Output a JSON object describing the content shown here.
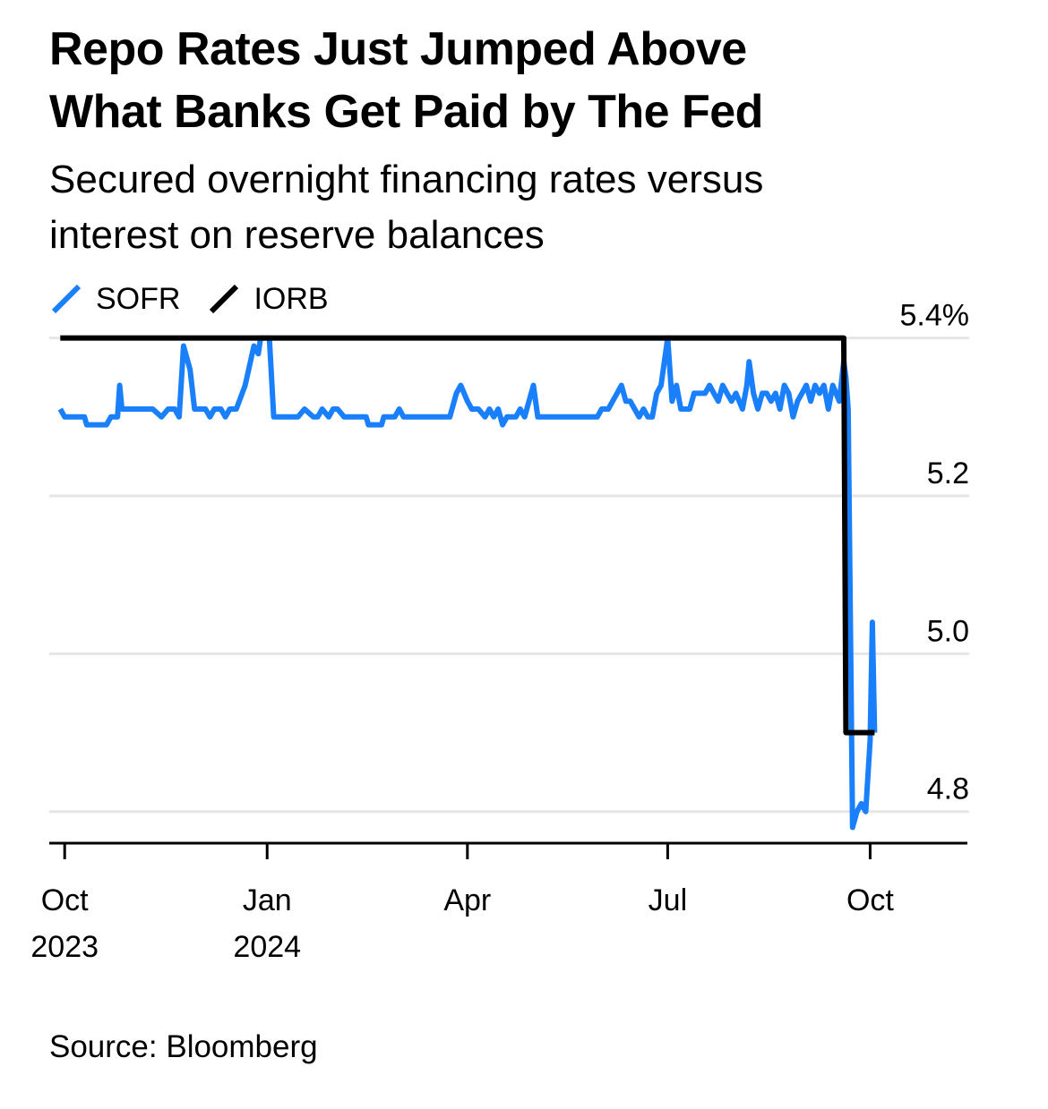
{
  "title_line1": "Repo Rates Just Jumped Above",
  "title_line2": "What Banks Get Paid by The Fed",
  "subtitle_line1": "Secured overnight financing rates versus",
  "subtitle_line2": "interest on reserve balances",
  "source": "Source: Bloomberg",
  "colors": {
    "sofr": "#1a7ffb",
    "iorb": "#000000",
    "grid": "#e6e6e6",
    "axis": "#000000"
  },
  "chart_data": {
    "type": "line",
    "title": "Repo Rates Just Jumped Above What Banks Get Paid by The Fed",
    "subtitle": "Secured overnight financing rates versus interest on reserve balances",
    "xlabel": "",
    "ylabel": "",
    "ylim": [
      4.76,
      5.42
    ],
    "xlim": [
      "2023-09-24",
      "2024-11-15"
    ],
    "y_ticks": [
      {
        "value": 5.4,
        "label": "5.4%"
      },
      {
        "value": 5.2,
        "label": "5.2"
      },
      {
        "value": 5.0,
        "label": "5.0"
      },
      {
        "value": 4.8,
        "label": "4.8"
      }
    ],
    "x_ticks": [
      {
        "date": "2023-10-01",
        "line1": "Oct",
        "line2": "2023"
      },
      {
        "date": "2024-01-01",
        "line1": "Jan",
        "line2": "2024"
      },
      {
        "date": "2024-04-01",
        "line1": "Apr",
        "line2": ""
      },
      {
        "date": "2024-07-01",
        "line1": "Jul",
        "line2": ""
      },
      {
        "date": "2024-10-01",
        "line1": "Oct",
        "line2": ""
      }
    ],
    "grid": true,
    "legend": "top-left",
    "series": [
      {
        "name": "SOFR",
        "color": "#1a7ffb",
        "points": [
          [
            "2023-09-29",
            5.31
          ],
          [
            "2023-10-01",
            5.3
          ],
          [
            "2023-10-02",
            5.3
          ],
          [
            "2023-10-10",
            5.3
          ],
          [
            "2023-10-11",
            5.29
          ],
          [
            "2023-10-20",
            5.29
          ],
          [
            "2023-10-22",
            5.3
          ],
          [
            "2023-10-25",
            5.3
          ],
          [
            "2023-10-26",
            5.34
          ],
          [
            "2023-10-27",
            5.31
          ],
          [
            "2023-10-28",
            5.31
          ],
          [
            "2023-11-05",
            5.31
          ],
          [
            "2023-11-10",
            5.31
          ],
          [
            "2023-11-14",
            5.3
          ],
          [
            "2023-11-17",
            5.31
          ],
          [
            "2023-11-20",
            5.31
          ],
          [
            "2023-11-22",
            5.3
          ],
          [
            "2023-11-24",
            5.39
          ],
          [
            "2023-11-27",
            5.36
          ],
          [
            "2023-11-29",
            5.31
          ],
          [
            "2023-12-01",
            5.31
          ],
          [
            "2023-12-04",
            5.31
          ],
          [
            "2023-12-06",
            5.3
          ],
          [
            "2023-12-08",
            5.31
          ],
          [
            "2023-12-11",
            5.31
          ],
          [
            "2023-12-13",
            5.3
          ],
          [
            "2023-12-15",
            5.31
          ],
          [
            "2023-12-18",
            5.31
          ],
          [
            "2023-12-22",
            5.34
          ],
          [
            "2023-12-26",
            5.39
          ],
          [
            "2023-12-28",
            5.38
          ],
          [
            "2023-12-29",
            5.4
          ],
          [
            "2024-01-02",
            5.4
          ],
          [
            "2024-01-04",
            5.3
          ],
          [
            "2024-01-10",
            5.3
          ],
          [
            "2024-01-15",
            5.3
          ],
          [
            "2024-01-18",
            5.31
          ],
          [
            "2024-01-22",
            5.3
          ],
          [
            "2024-01-24",
            5.3
          ],
          [
            "2024-01-26",
            5.31
          ],
          [
            "2024-01-29",
            5.3
          ],
          [
            "2024-01-31",
            5.31
          ],
          [
            "2024-02-02",
            5.31
          ],
          [
            "2024-02-05",
            5.3
          ],
          [
            "2024-02-09",
            5.3
          ],
          [
            "2024-02-12",
            5.3
          ],
          [
            "2024-02-15",
            5.3
          ],
          [
            "2024-02-16",
            5.29
          ],
          [
            "2024-02-22",
            5.29
          ],
          [
            "2024-02-23",
            5.3
          ],
          [
            "2024-02-28",
            5.3
          ],
          [
            "2024-03-01",
            5.31
          ],
          [
            "2024-03-03",
            5.3
          ],
          [
            "2024-03-15",
            5.3
          ],
          [
            "2024-03-24",
            5.3
          ],
          [
            "2024-03-27",
            5.33
          ],
          [
            "2024-03-29",
            5.34
          ],
          [
            "2024-04-01",
            5.32
          ],
          [
            "2024-04-03",
            5.31
          ],
          [
            "2024-04-06",
            5.31
          ],
          [
            "2024-04-09",
            5.3
          ],
          [
            "2024-04-11",
            5.31
          ],
          [
            "2024-04-13",
            5.3
          ],
          [
            "2024-04-15",
            5.31
          ],
          [
            "2024-04-17",
            5.29
          ],
          [
            "2024-04-19",
            5.3
          ],
          [
            "2024-04-23",
            5.3
          ],
          [
            "2024-04-25",
            5.31
          ],
          [
            "2024-04-27",
            5.3
          ],
          [
            "2024-04-29",
            5.32
          ],
          [
            "2024-05-01",
            5.34
          ],
          [
            "2024-05-03",
            5.3
          ],
          [
            "2024-05-15",
            5.3
          ],
          [
            "2024-05-30",
            5.3
          ],
          [
            "2024-06-01",
            5.31
          ],
          [
            "2024-06-04",
            5.31
          ],
          [
            "2024-06-06",
            5.32
          ],
          [
            "2024-06-08",
            5.33
          ],
          [
            "2024-06-10",
            5.34
          ],
          [
            "2024-06-12",
            5.32
          ],
          [
            "2024-06-14",
            5.32
          ],
          [
            "2024-06-16",
            5.31
          ],
          [
            "2024-06-18",
            5.3
          ],
          [
            "2024-06-20",
            5.31
          ],
          [
            "2024-06-22",
            5.3
          ],
          [
            "2024-06-24",
            5.3
          ],
          [
            "2024-06-26",
            5.33
          ],
          [
            "2024-06-28",
            5.34
          ],
          [
            "2024-07-01",
            5.4
          ],
          [
            "2024-07-03",
            5.32
          ],
          [
            "2024-07-05",
            5.34
          ],
          [
            "2024-07-07",
            5.31
          ],
          [
            "2024-07-09",
            5.31
          ],
          [
            "2024-07-11",
            5.31
          ],
          [
            "2024-07-13",
            5.33
          ],
          [
            "2024-07-16",
            5.33
          ],
          [
            "2024-07-18",
            5.33
          ],
          [
            "2024-07-20",
            5.34
          ],
          [
            "2024-07-22",
            5.33
          ],
          [
            "2024-07-24",
            5.32
          ],
          [
            "2024-07-26",
            5.34
          ],
          [
            "2024-07-28",
            5.33
          ],
          [
            "2024-07-30",
            5.32
          ],
          [
            "2024-08-01",
            5.33
          ],
          [
            "2024-08-04",
            5.31
          ],
          [
            "2024-08-06",
            5.34
          ],
          [
            "2024-08-07",
            5.37
          ],
          [
            "2024-08-09",
            5.33
          ],
          [
            "2024-08-11",
            5.31
          ],
          [
            "2024-08-13",
            5.33
          ],
          [
            "2024-08-15",
            5.33
          ],
          [
            "2024-08-17",
            5.32
          ],
          [
            "2024-08-19",
            5.33
          ],
          [
            "2024-08-21",
            5.31
          ],
          [
            "2024-08-23",
            5.34
          ],
          [
            "2024-08-25",
            5.33
          ],
          [
            "2024-08-27",
            5.3
          ],
          [
            "2024-08-29",
            5.32
          ],
          [
            "2024-08-31",
            5.33
          ],
          [
            "2024-09-02",
            5.34
          ],
          [
            "2024-09-04",
            5.32
          ],
          [
            "2024-09-06",
            5.34
          ],
          [
            "2024-09-08",
            5.33
          ],
          [
            "2024-09-10",
            5.34
          ],
          [
            "2024-09-12",
            5.31
          ],
          [
            "2024-09-14",
            5.34
          ],
          [
            "2024-09-17",
            5.32
          ],
          [
            "2024-09-19",
            5.37
          ],
          [
            "2024-09-20",
            5.35
          ],
          [
            "2024-09-21",
            5.31
          ],
          [
            "2024-09-23",
            4.78
          ],
          [
            "2024-09-25",
            4.8
          ],
          [
            "2024-09-27",
            4.81
          ],
          [
            "2024-09-29",
            4.8
          ],
          [
            "2024-10-01",
            4.89
          ],
          [
            "2024-10-02",
            5.04
          ],
          [
            "2024-10-03",
            4.9
          ]
        ]
      },
      {
        "name": "IORB",
        "color": "#000000",
        "points": [
          [
            "2023-09-29",
            5.4
          ],
          [
            "2024-09-19",
            5.4
          ],
          [
            "2024-09-19",
            5.4
          ],
          [
            "2024-09-20",
            4.9
          ],
          [
            "2024-10-03",
            4.9
          ]
        ]
      }
    ]
  }
}
